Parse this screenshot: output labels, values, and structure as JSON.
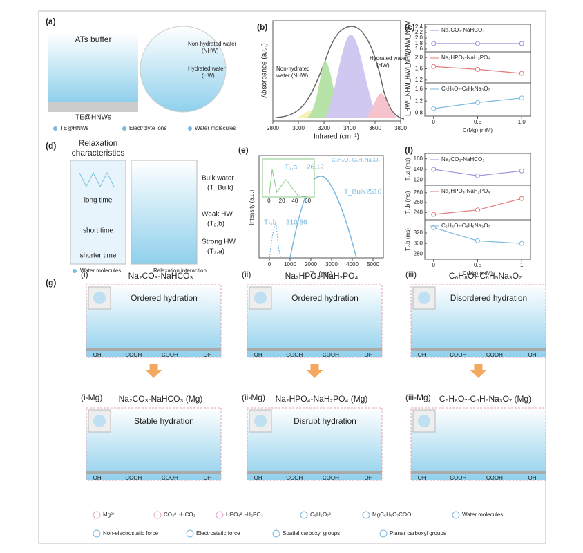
{
  "figure": {
    "a": {
      "label": "(a)",
      "title": "ATs buffer",
      "nhw": [
        "Non-hydrated water",
        "(NHW)"
      ],
      "hw": [
        "Hydrated water",
        "(HW)"
      ],
      "substrate": "TE@HNWs",
      "legend": [
        "TE@HNWs",
        "Electrolyte ions",
        "Water molecules"
      ]
    },
    "b": {
      "label": "(b)",
      "xlabel": "Infrared (cm⁻¹)",
      "ylabel": "Absorbance (a.u.)",
      "xlim": [
        2800,
        3800
      ],
      "xticks": [
        2800,
        3000,
        3200,
        3400,
        3600,
        3800
      ],
      "nhw": [
        "Non-hydrated",
        "water (NHW)"
      ],
      "hw": [
        "Hydrated water",
        "(HW)"
      ]
    },
    "c": {
      "label": "(c)",
      "xlabel": "C(Mg) (mM)",
      "xlim": [
        -0.1,
        1.1
      ],
      "xticks": [
        0,
        0.5,
        {
          "value": 1,
          "label": "1.0"
        }
      ],
      "subplots": [
        {
          "name": "Na₂CO₃-NaHCO₃",
          "ylabel": "I_HW/I_NHW",
          "color": "#9b8fd8",
          "x": [
            0,
            0.5,
            1
          ],
          "values": [
            1.8,
            1.8,
            1.8
          ],
          "ylim": [
            1.5,
            2.5
          ],
          "yticks": [
            1.6,
            1.8,
            {
              "value": 2,
              "label": "2.0"
            },
            2.2,
            2.4
          ]
        },
        {
          "name": "Na₂HPO₄-NaH₂PO₄",
          "ylabel": "I_HW/I_NHW",
          "color": "#e07a7a",
          "x": [
            0,
            0.5,
            1
          ],
          "values": [
            1.68,
            1.58,
            1.44
          ],
          "ylim": [
            1.1,
            2.2
          ],
          "yticks": [
            1.2,
            1.6,
            {
              "value": 2,
              "label": "2.0"
            }
          ]
        },
        {
          "name": "C₆H₈O₇-C₆H₅Na₃O₇",
          "ylabel": "I_HW/I_NHW",
          "color": "#7ab8e0",
          "x": [
            0,
            0.5,
            1
          ],
          "values": [
            0.95,
            1.15,
            1.3
          ],
          "ylim": [
            0.7,
            1.8
          ],
          "yticks": [
            0.8,
            1.2,
            1.6
          ]
        }
      ]
    },
    "d": {
      "label": "(d)",
      "title": [
        "Relaxation",
        "characteristics"
      ],
      "times": [
        "long time",
        "short time",
        "shorter time"
      ],
      "layers": [
        [
          "Bulk water",
          "(T_Bulk)"
        ],
        [
          "Weak HW",
          "(T₂,b)"
        ],
        [
          "Strong HW",
          "(T₂,a)"
        ]
      ],
      "legend": [
        "Water molecules",
        "Relaxation interaction"
      ]
    },
    "e": {
      "label": "(e)",
      "legend": "C₆H₈O₇-C₆H₅Na₃O₇",
      "xlabel": "T₂ (ms)",
      "ylabel": "Intensity (a.u.)",
      "xlim": [
        -500,
        5500
      ],
      "xticks": [
        0,
        1000,
        2000,
        3000,
        4000,
        5000
      ],
      "inset_xlim": [
        -10,
        70
      ],
      "inset_xticks": [
        0,
        20,
        40,
        60
      ],
      "peaks": [
        {
          "symbol": "T₂,a",
          "value": 26.12
        },
        {
          "symbol": "T₂,b",
          "value": 310.86
        },
        {
          "symbol": "T_Bulk",
          "value": 2516
        }
      ]
    },
    "f": {
      "label": "(f)",
      "xlabel": "C(Mg) (mM)",
      "xlim": [
        -0.1,
        1.1
      ],
      "xticks": [
        0,
        0.5,
        1
      ],
      "subplots": [
        {
          "name": "Na₂CO₃-NaHCO₃",
          "ylabel": "T₂,a (ms)",
          "color": "#9b8fd8",
          "x": [
            0,
            0.5,
            1
          ],
          "values": [
            140,
            128,
            137
          ],
          "ylim": [
            110,
            170
          ],
          "yticks": [
            120,
            140,
            160
          ]
        },
        {
          "name": "Na₂HPO₄-NaH₂PO₄",
          "ylabel": "T₂,b (ms)",
          "color": "#e07a7a",
          "x": [
            0,
            0.5,
            1
          ],
          "values": [
            236,
            245,
            268
          ],
          "ylim": [
            225,
            295
          ],
          "yticks": [
            240,
            260,
            280
          ]
        },
        {
          "name": "C₆H₈O₇-C₆H₅Na₃O₇",
          "ylabel": "T₂,b (ms)",
          "color": "#7ab8e0",
          "x": [
            0,
            0.5,
            1
          ],
          "values": [
            330,
            305,
            300
          ],
          "ylim": [
            270,
            345
          ],
          "yticks": [
            280,
            300,
            320
          ]
        }
      ]
    },
    "g": {
      "label": "(g)",
      "surface": [
        "OH",
        "COOH",
        "COOH",
        "OH"
      ],
      "panels": [
        {
          "id": "(i)",
          "title": "Na₂CO₃-NaHCO₃",
          "state": "Ordered hydration"
        },
        {
          "id": "(ii)",
          "title": "Na₂HPO₄-NaH₂PO₄",
          "state": "Ordered hydration"
        },
        {
          "id": "(iii)",
          "title": "C₆H₈O₇-C₆H₅Na₃O₇",
          "state": "Disordered hydration"
        },
        {
          "id": "(i-Mg)",
          "title": "Na₂CO₃-NaHCO₃ (Mg)",
          "state": "Stable hydration"
        },
        {
          "id": "(ii-Mg)",
          "title": "Na₂HPO₄-NaH₂PO₄ (Mg)",
          "state": "Disrupt hydration"
        },
        {
          "id": "(iii-Mg)",
          "title": "C₆H₈O₇-C₆H₅Na₃O₇ (Mg)"
        }
      ],
      "legend": [
        "Mg²⁺",
        "CO₃²⁻-HCO₃⁻",
        "HPO₄²⁻-H₂PO₄⁻",
        "C₆H₅O₇³⁻",
        "MgC₆H₅O₇COO⁻",
        "Water molecules",
        "Non-electrostatic force",
        "Electrostatic force",
        "Spatial carboxyl groups",
        "Planar carboxyl groups"
      ]
    }
  }
}
